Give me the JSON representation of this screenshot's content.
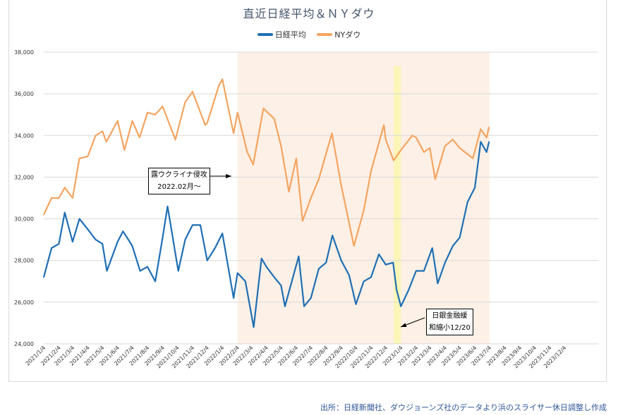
{
  "chart_data": {
    "type": "line",
    "title": "直近日経平均＆ＮＹダウ",
    "ylim": [
      24000,
      38000
    ],
    "yticks": [
      "24,000",
      "26,000",
      "28,000",
      "30,000",
      "32,000",
      "34,000",
      "36,000",
      "38,000"
    ],
    "xticks": [
      "2021/1/4",
      "2021/2/4",
      "2021/3/4",
      "2021/4/4",
      "2021/5/4",
      "2021/6/4",
      "2021/7/4",
      "2021/8/4",
      "2021/9/4",
      "2021/10/4",
      "2021/11/4",
      "2021/12/4",
      "2022/1/4",
      "2022/2/4",
      "2022/3/4",
      "2022/4/4",
      "2022/5/4",
      "2022/6/4",
      "2022/7/4",
      "2022/8/4",
      "2022/9/4",
      "2022/10/4",
      "2022/11/4",
      "2022/12/4",
      "2023/1/4",
      "2023/2/4",
      "2023/3/4",
      "2023/4/4",
      "2023/5/4",
      "2023/6/4",
      "2023/7/4",
      "2023/8/4",
      "2023/9/4",
      "2023/10/4",
      "2023/11/4",
      "2023/12/4"
    ],
    "grid": true,
    "legend_position": "top",
    "series": [
      {
        "name": "日経平均",
        "color": "#1f6fb4",
        "points": [
          [
            "2021/1/4",
            27200
          ],
          [
            "2021/1/20",
            28600
          ],
          [
            "2021/2/4",
            28800
          ],
          [
            "2021/2/16",
            30300
          ],
          [
            "2021/3/4",
            28900
          ],
          [
            "2021/3/18",
            30000
          ],
          [
            "2021/4/4",
            29500
          ],
          [
            "2021/4/20",
            29000
          ],
          [
            "2021/5/4",
            28800
          ],
          [
            "2021/5/13",
            27500
          ],
          [
            "2021/6/4",
            28900
          ],
          [
            "2021/6/15",
            29400
          ],
          [
            "2021/7/4",
            28700
          ],
          [
            "2021/7/20",
            27500
          ],
          [
            "2021/8/4",
            27700
          ],
          [
            "2021/8/20",
            27000
          ],
          [
            "2021/9/4",
            29100
          ],
          [
            "2021/9/14",
            30600
          ],
          [
            "2021/10/6",
            27500
          ],
          [
            "2021/10/20",
            29000
          ],
          [
            "2021/11/4",
            29700
          ],
          [
            "2021/11/20",
            29700
          ],
          [
            "2021/12/4",
            28000
          ],
          [
            "2021/12/20",
            28600
          ],
          [
            "2022/1/4",
            29300
          ],
          [
            "2022/1/27",
            26200
          ],
          [
            "2022/2/4",
            27400
          ],
          [
            "2022/2/20",
            27000
          ],
          [
            "2022/3/9",
            24800
          ],
          [
            "2022/3/25",
            28100
          ],
          [
            "2022/4/4",
            27700
          ],
          [
            "2022/4/20",
            27200
          ],
          [
            "2022/5/4",
            26800
          ],
          [
            "2022/5/12",
            25800
          ],
          [
            "2022/6/9",
            28200
          ],
          [
            "2022/6/20",
            25800
          ],
          [
            "2022/7/4",
            26200
          ],
          [
            "2022/7/20",
            27600
          ],
          [
            "2022/8/4",
            27900
          ],
          [
            "2022/8/17",
            29200
          ],
          [
            "2022/9/4",
            28000
          ],
          [
            "2022/9/20",
            27300
          ],
          [
            "2022/10/4",
            25900
          ],
          [
            "2022/10/20",
            27000
          ],
          [
            "2022/11/4",
            27200
          ],
          [
            "2022/11/20",
            28300
          ],
          [
            "2022/12/4",
            27800
          ],
          [
            "2022/12/19",
            27900
          ],
          [
            "2022/12/26",
            26600
          ],
          [
            "2023/1/4",
            25800
          ],
          [
            "2023/1/20",
            26600
          ],
          [
            "2023/2/4",
            27500
          ],
          [
            "2023/2/20",
            27500
          ],
          [
            "2023/3/9",
            28600
          ],
          [
            "2023/3/20",
            26900
          ],
          [
            "2023/4/4",
            27900
          ],
          [
            "2023/4/20",
            28700
          ],
          [
            "2023/5/4",
            29100
          ],
          [
            "2023/5/20",
            30800
          ],
          [
            "2023/6/4",
            31500
          ],
          [
            "2023/6/16",
            33700
          ],
          [
            "2023/6/28",
            33200
          ],
          [
            "2023/7/3",
            33700
          ]
        ]
      },
      {
        "name": "NYダウ",
        "color": "#f4a460",
        "points": [
          [
            "2021/1/4",
            30200
          ],
          [
            "2021/1/20",
            31000
          ],
          [
            "2021/2/4",
            31000
          ],
          [
            "2021/2/16",
            31500
          ],
          [
            "2021/3/4",
            31000
          ],
          [
            "2021/3/18",
            32900
          ],
          [
            "2021/4/4",
            33000
          ],
          [
            "2021/4/20",
            34000
          ],
          [
            "2021/5/4",
            34200
          ],
          [
            "2021/5/12",
            33700
          ],
          [
            "2021/6/4",
            34700
          ],
          [
            "2021/6/18",
            33300
          ],
          [
            "2021/7/4",
            34700
          ],
          [
            "2021/7/19",
            33900
          ],
          [
            "2021/8/4",
            35100
          ],
          [
            "2021/8/20",
            35000
          ],
          [
            "2021/9/4",
            35400
          ],
          [
            "2021/9/30",
            33800
          ],
          [
            "2021/10/20",
            35600
          ],
          [
            "2021/11/4",
            36100
          ],
          [
            "2021/11/30",
            34500
          ],
          [
            "2021/12/4",
            34600
          ],
          [
            "2021/12/28",
            36400
          ],
          [
            "2022/1/4",
            36700
          ],
          [
            "2022/1/27",
            34100
          ],
          [
            "2022/2/4",
            35100
          ],
          [
            "2022/2/24",
            33200
          ],
          [
            "2022/3/8",
            32600
          ],
          [
            "2022/3/29",
            35300
          ],
          [
            "2022/4/20",
            34800
          ],
          [
            "2022/5/4",
            33500
          ],
          [
            "2022/5/20",
            31300
          ],
          [
            "2022/6/4",
            32900
          ],
          [
            "2022/6/17",
            29900
          ],
          [
            "2022/7/4",
            31000
          ],
          [
            "2022/7/20",
            31900
          ],
          [
            "2022/8/16",
            34100
          ],
          [
            "2022/9/4",
            31600
          ],
          [
            "2022/9/30",
            28700
          ],
          [
            "2022/10/20",
            30400
          ],
          [
            "2022/11/4",
            32300
          ],
          [
            "2022/11/30",
            34500
          ],
          [
            "2022/12/4",
            33800
          ],
          [
            "2022/12/20",
            32800
          ],
          [
            "2023/1/4",
            33300
          ],
          [
            "2023/1/27",
            34000
          ],
          [
            "2023/2/4",
            33900
          ],
          [
            "2023/2/20",
            33200
          ],
          [
            "2023/3/4",
            33400
          ],
          [
            "2023/3/15",
            31900
          ],
          [
            "2023/4/4",
            33500
          ],
          [
            "2023/4/20",
            33800
          ],
          [
            "2023/5/4",
            33400
          ],
          [
            "2023/5/31",
            32900
          ],
          [
            "2023/6/16",
            34300
          ],
          [
            "2023/6/28",
            33900
          ],
          [
            "2023/7/3",
            34400
          ]
        ]
      }
    ],
    "shaded_ranges": [
      {
        "from": "2022/2/4",
        "to": "2023/7/4",
        "color": "#fdf0e6"
      },
      {
        "from": "2022/12/20",
        "to": "2023/1/4",
        "color": "#fbf5b8"
      }
    ],
    "annotations": [
      {
        "line1": "露ウクライナ侵攻",
        "line2": "2022.02月～"
      },
      {
        "line1": "日銀金融緩",
        "line2": "和縮小12/20"
      }
    ]
  },
  "source": "出所：日経新聞社、ダウジョーンズ社のデータより浜のスライサー休日調整し作成"
}
